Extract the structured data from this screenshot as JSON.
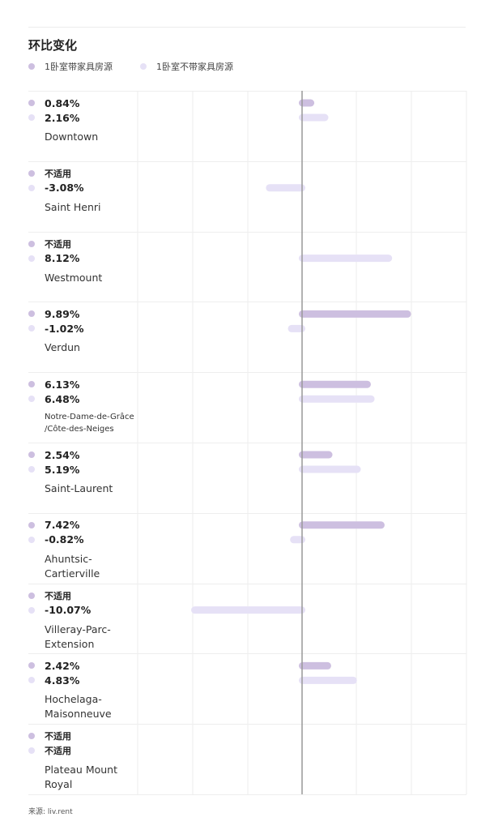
{
  "colors": {
    "furnished": "#cdbfe0",
    "unfurnished": "#e6e1f6",
    "axis": "#999999",
    "grid": "#eeeeee"
  },
  "chart_data": {
    "type": "bar",
    "orientation": "horizontal",
    "title": "环比变化",
    "unit": "%",
    "legend": [
      "1卧室带家具房源",
      "1卧室不带家具房源"
    ],
    "legend_position": "top-left",
    "categories": [
      "Downtown",
      "Saint Henri",
      "Westmount",
      "Verdun",
      "Notre-Dame-de-Grâce /Côte-des-Neiges",
      "Saint-Laurent",
      "Ahuntsic-Cartierville",
      "Villeray-Parc-Extension",
      "Hochelaga-Maisonneuve",
      "Plateau Mount Royal"
    ],
    "series": [
      {
        "name": "1卧室带家具房源",
        "values": [
          0.84,
          null,
          null,
          9.89,
          6.13,
          2.54,
          7.42,
          null,
          2.42,
          null
        ]
      },
      {
        "name": "1卧室不带家具房源",
        "values": [
          2.16,
          -3.08,
          8.12,
          -1.02,
          6.48,
          5.19,
          -0.82,
          -10.07,
          4.83,
          null
        ]
      }
    ],
    "value_labels": [
      [
        "0.84%",
        "2.16%"
      ],
      [
        "不适用",
        "-3.08%"
      ],
      [
        "不适用",
        "8.12%"
      ],
      [
        "9.89%",
        "-1.02%"
      ],
      [
        "6.13%",
        "6.48%"
      ],
      [
        "2.54%",
        "5.19%"
      ],
      [
        "7.42%",
        "-0.82%"
      ],
      [
        "不适用",
        "-10.07%"
      ],
      [
        "2.42%",
        "4.83%"
      ],
      [
        "不适用",
        "不适用"
      ]
    ],
    "xlim": [
      -15,
      15
    ],
    "grid": true,
    "na_label": "不适用"
  },
  "source": "来源: liv.rent"
}
